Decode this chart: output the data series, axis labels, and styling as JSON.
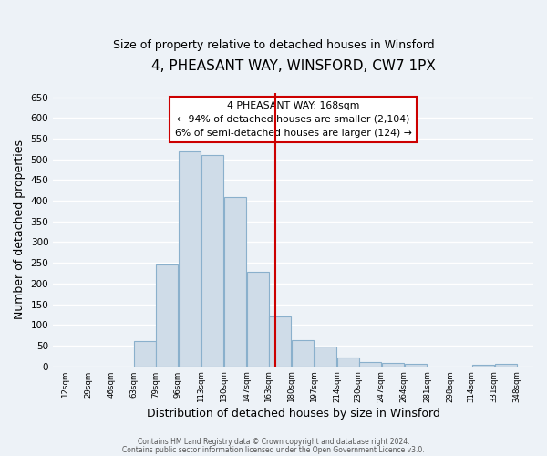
{
  "title": "4, PHEASANT WAY, WINSFORD, CW7 1PX",
  "subtitle": "Size of property relative to detached houses in Winsford",
  "xlabel": "Distribution of detached houses by size in Winsford",
  "ylabel": "Number of detached properties",
  "bar_left_edges": [
    12,
    29,
    46,
    63,
    79,
    96,
    113,
    130,
    147,
    163,
    180,
    197,
    214,
    230,
    247,
    264,
    281,
    298,
    314,
    331
  ],
  "bar_heights": [
    0,
    0,
    0,
    60,
    245,
    520,
    510,
    410,
    228,
    120,
    63,
    47,
    22,
    10,
    8,
    5,
    0,
    0,
    3,
    5
  ],
  "bar_widths": [
    17,
    17,
    17,
    17,
    17,
    17,
    17,
    17,
    17,
    17,
    17,
    17,
    17,
    17,
    17,
    17,
    17,
    17,
    17,
    17
  ],
  "tick_labels": [
    "12sqm",
    "29sqm",
    "46sqm",
    "63sqm",
    "79sqm",
    "96sqm",
    "113sqm",
    "130sqm",
    "147sqm",
    "163sqm",
    "180sqm",
    "197sqm",
    "214sqm",
    "230sqm",
    "247sqm",
    "264sqm",
    "281sqm",
    "298sqm",
    "314sqm",
    "331sqm",
    "348sqm"
  ],
  "tick_positions": [
    12,
    29,
    46,
    63,
    79,
    96,
    113,
    130,
    147,
    163,
    180,
    197,
    214,
    230,
    247,
    264,
    281,
    298,
    314,
    331,
    348
  ],
  "bar_color": "#cfdce8",
  "bar_edge_color": "#8ab0cc",
  "ylim": [
    0,
    660
  ],
  "yticks": [
    0,
    50,
    100,
    150,
    200,
    250,
    300,
    350,
    400,
    450,
    500,
    550,
    600,
    650
  ],
  "property_line_x": 168,
  "property_line_color": "#cc0000",
  "annotation_title": "4 PHEASANT WAY: 168sqm",
  "annotation_line1": "← 94% of detached houses are smaller (2,104)",
  "annotation_line2": "6% of semi-detached houses are larger (124) →",
  "footnote1": "Contains HM Land Registry data © Crown copyright and database right 2024.",
  "footnote2": "Contains public sector information licensed under the Open Government Licence v3.0.",
  "background_color": "#edf2f7",
  "grid_color": "#ffffff",
  "title_fontsize": 11,
  "subtitle_fontsize": 9,
  "ylabel_fontsize": 9,
  "xlabel_fontsize": 9,
  "footnote_fontsize": 5.5
}
